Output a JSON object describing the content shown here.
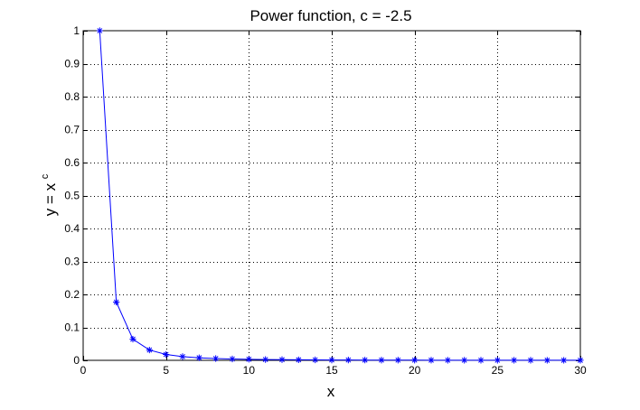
{
  "chart_data": {
    "type": "line",
    "title": "Power function, c = -2.5",
    "xlabel": "x",
    "ylabel": {
      "base": "y = x",
      "superscript": "c"
    },
    "xlim": [
      0,
      30
    ],
    "ylim": [
      0,
      1
    ],
    "xticks": [
      0,
      5,
      10,
      15,
      20,
      25,
      30
    ],
    "yticks": [
      0,
      0.1,
      0.2,
      0.3,
      0.4,
      0.5,
      0.6,
      0.7,
      0.8,
      0.9,
      1
    ],
    "grid": true,
    "legend": false,
    "series": [
      {
        "color": "#0000ff",
        "marker": "asterisk",
        "x": [
          1,
          2,
          3,
          4,
          5,
          6,
          7,
          8,
          9,
          10,
          11,
          12,
          13,
          14,
          15,
          16,
          17,
          18,
          19,
          20,
          21,
          22,
          23,
          24,
          25,
          26,
          27,
          28,
          29,
          30
        ],
        "y": [
          1,
          0.1768,
          0.0642,
          0.0313,
          0.0179,
          0.0113,
          0.0077,
          0.0055,
          0.0041,
          0.0032,
          0.0025,
          0.002,
          0.0016,
          0.0013,
          0.0011,
          0.001,
          0.0008,
          0.0007,
          0.0006,
          0.0006,
          0.0005,
          0.0004,
          0.0004,
          0.0004,
          0.0003,
          0.0003,
          0.0003,
          0.0002,
          0.0002,
          0.0002
        ]
      }
    ]
  }
}
